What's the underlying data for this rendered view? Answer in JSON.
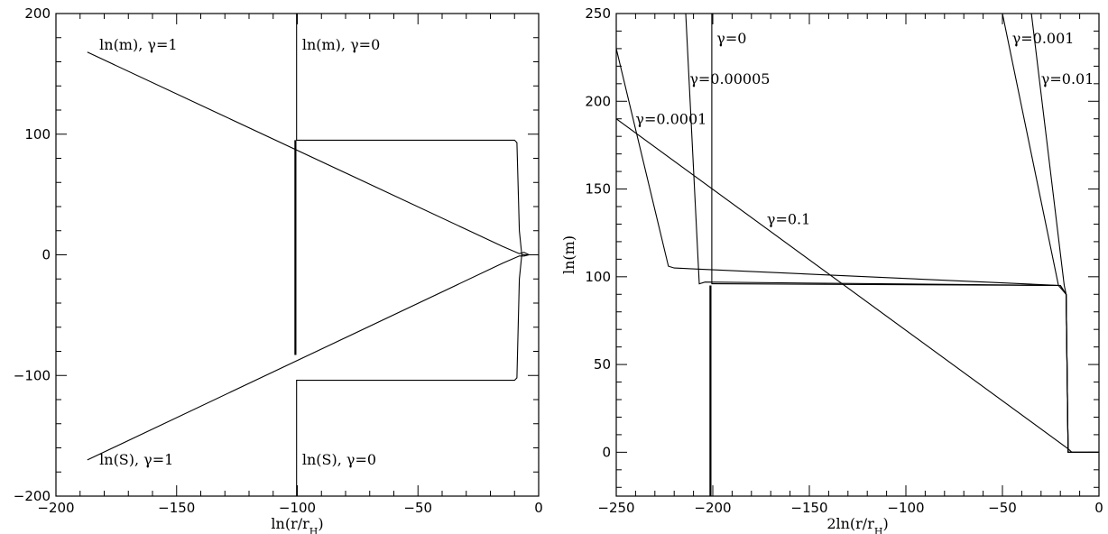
{
  "chart_data": [
    {
      "type": "line",
      "title": "",
      "xlabel": "ln(r/r_H)",
      "ylabel": "",
      "xlim": [
        -200,
        0
      ],
      "ylim": [
        -200,
        200
      ],
      "x_ticks": [
        -200,
        -150,
        -100,
        -50,
        0
      ],
      "x_tick_labels": [
        "−200",
        "−150",
        "−100",
        "−50",
        "0"
      ],
      "y_ticks": [
        -200,
        -100,
        0,
        100,
        200
      ],
      "y_tick_labels": [
        "−200",
        "−100",
        "0",
        "100",
        "200"
      ],
      "annotations": [
        {
          "text": "ln(m),  γ=1",
          "x": -182,
          "y": 170
        },
        {
          "text": "ln(m),  γ=0",
          "x": -98,
          "y": 170
        },
        {
          "text": "ln(S),  γ=1",
          "x": -182,
          "y": -174
        },
        {
          "text": "ln(S),  γ=0",
          "x": -98,
          "y": -174
        }
      ],
      "series": [
        {
          "values": [
            [
              -187,
              168
            ],
            [
              -15,
              7
            ],
            [
              -8,
              1
            ],
            [
              -6,
              2
            ],
            [
              -4,
              0
            ],
            [
              0,
              0
            ]
          ]
        },
        {
          "values": [
            [
              -187,
              -170
            ],
            [
              -15,
              -7
            ],
            [
              -8,
              -1
            ],
            [
              -6,
              -1
            ],
            [
              -4,
              0
            ],
            [
              0,
              0
            ]
          ]
        },
        {
          "values": [
            [
              -100.3,
              200
            ],
            [
              -100.3,
              95
            ],
            [
              -100,
              95
            ],
            [
              -10,
              95
            ],
            [
              -9,
              93
            ],
            [
              -8,
              20
            ],
            [
              -7,
              0
            ],
            [
              0,
              0
            ]
          ]
        },
        {
          "values": [
            [
              -100.3,
              -200
            ],
            [
              -100.3,
              -104
            ],
            [
              -100,
              -104
            ],
            [
              -10,
              -104
            ],
            [
              -9,
              -102
            ],
            [
              -8,
              -20
            ],
            [
              -7,
              0
            ],
            [
              0,
              0
            ]
          ]
        },
        {
          "values": [
            [
              -100.8,
              95
            ],
            [
              -100.8,
              -83
            ]
          ],
          "thick": true
        }
      ]
    },
    {
      "type": "line",
      "title": "",
      "xlabel": "2ln(r/r_H)",
      "ylabel": "ln(m)",
      "xlim": [
        -250,
        0
      ],
      "ylim": [
        -25,
        250
      ],
      "x_ticks": [
        -250,
        -200,
        -150,
        -100,
        -50,
        0
      ],
      "x_tick_labels": [
        "−250",
        "−200",
        "−150",
        "−100",
        "−50",
        "0"
      ],
      "y_ticks": [
        0,
        50,
        100,
        150,
        200,
        250
      ],
      "y_tick_labels": [
        "0",
        "50",
        "100",
        "150",
        "200",
        "250"
      ],
      "annotations": [
        {
          "text": "γ=0",
          "x": -198,
          "y": 233
        },
        {
          "text": "γ=0.00005",
          "x": -212,
          "y": 210
        },
        {
          "text": "γ=0.0001",
          "x": -240,
          "y": 187
        },
        {
          "text": "γ=0.1",
          "x": -172,
          "y": 130
        },
        {
          "text": "γ=0.001",
          "x": -45,
          "y": 233
        },
        {
          "text": "γ=0.01",
          "x": -30,
          "y": 210
        }
      ],
      "series": [
        {
          "values": [
            [
              -250,
              230
            ],
            [
              -223,
              106
            ],
            [
              -220,
              105
            ],
            [
              -20,
              95
            ],
            [
              -17,
              90
            ],
            [
              -16,
              0
            ],
            [
              0,
              0
            ]
          ]
        },
        {
          "values": [
            [
              -214,
              250
            ],
            [
              -207,
              96
            ],
            [
              -204,
              97
            ],
            [
              -20,
              95
            ],
            [
              -17,
              90
            ],
            [
              -16,
              0
            ],
            [
              0,
              0
            ]
          ]
        },
        {
          "values": [
            [
              -200.5,
              250
            ],
            [
              -200.5,
              96
            ],
            [
              -199,
              96
            ],
            [
              -20,
              95
            ],
            [
              -17,
              90
            ],
            [
              -16,
              0
            ],
            [
              0,
              0
            ]
          ]
        },
        {
          "values": [
            [
              -201.2,
              95
            ],
            [
              -201.2,
              -25
            ]
          ],
          "thick": true
        },
        {
          "values": [
            [
              -250,
              190
            ],
            [
              -16,
              2
            ],
            [
              -14,
              0
            ],
            [
              0,
              0
            ]
          ]
        },
        {
          "values": [
            [
              -50,
              250
            ],
            [
              -21,
              95
            ],
            [
              -17,
              90
            ],
            [
              -16,
              0
            ],
            [
              0,
              0
            ]
          ]
        },
        {
          "values": [
            [
              -35,
              250
            ],
            [
              -18,
              95
            ],
            [
              -17,
              90
            ],
            [
              -16,
              0
            ],
            [
              0,
              0
            ]
          ]
        }
      ]
    }
  ]
}
